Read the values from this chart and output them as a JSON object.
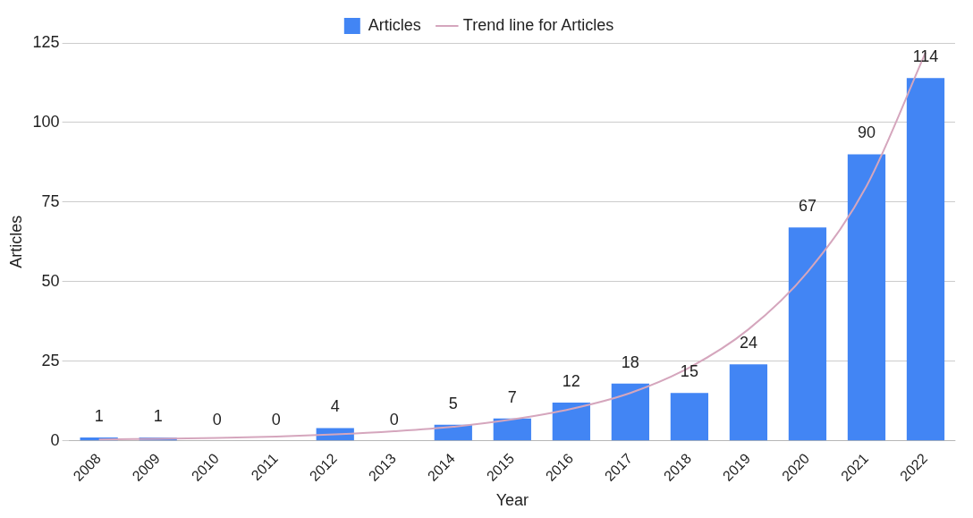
{
  "chart_data": {
    "type": "bar",
    "xlabel": "Year",
    "ylabel": "Articles",
    "categories": [
      "2008",
      "2009",
      "2010",
      "2011",
      "2012",
      "2013",
      "2014",
      "2015",
      "2016",
      "2017",
      "2018",
      "2019",
      "2020",
      "2021",
      "2022"
    ],
    "series": [
      {
        "name": "Articles",
        "color": "#4285f4",
        "values": [
          1,
          1,
          0,
          0,
          4,
          0,
          5,
          7,
          12,
          18,
          15,
          24,
          67,
          90,
          114
        ],
        "value_labels": [
          "1",
          "1",
          "0",
          "0",
          "4",
          "0",
          "5",
          "7",
          "12",
          "18",
          "15",
          "24",
          "67",
          "90",
          "114"
        ]
      },
      {
        "name": "Trend line for Articles",
        "type": "line",
        "color": "#d5a6bd",
        "values": [
          0.4,
          0.6,
          0.9,
          1.3,
          2,
          3,
          4.4,
          6.7,
          10,
          15,
          23,
          35,
          53,
          80,
          122
        ]
      }
    ],
    "ylim": [
      0,
      125
    ],
    "yticks": [
      0,
      25,
      50,
      75,
      100,
      125
    ],
    "grid": "y",
    "legend": "top",
    "marker": "none"
  }
}
